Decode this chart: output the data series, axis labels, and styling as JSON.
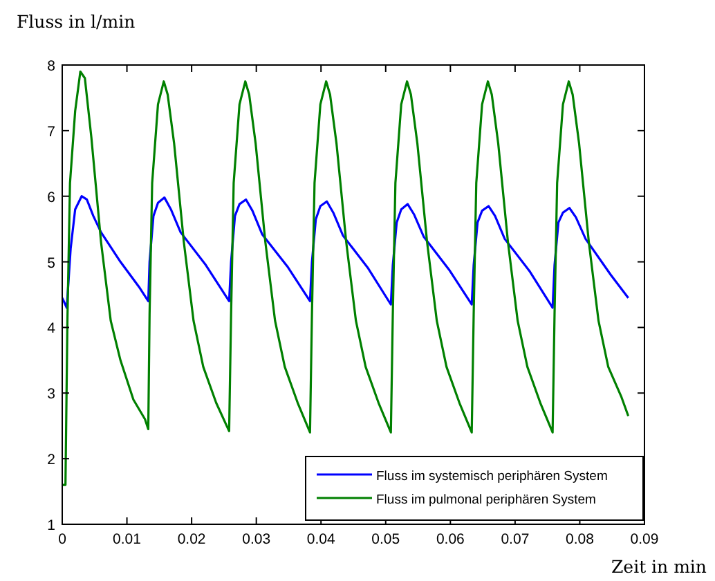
{
  "chart_data": {
    "type": "line",
    "ylabel": "Fluss in l/min",
    "xlabel": "Zeit in min",
    "xlim": [
      0,
      0.09
    ],
    "ylim": [
      1,
      8
    ],
    "xticks": [
      0,
      0.01,
      0.02,
      0.03,
      0.04,
      0.05,
      0.06,
      0.07,
      0.08,
      0.09
    ],
    "yticks": [
      1,
      2,
      3,
      4,
      5,
      6,
      7,
      8
    ],
    "grid": false,
    "legend": "bottom right",
    "marker": "none",
    "line_style": "solid",
    "series": [
      {
        "name": "Fluss im systemisch periphären System",
        "color": "#0000ff",
        "x": [
          0,
          0.0007,
          0.0013,
          0.002,
          0.003,
          0.0038,
          0.0048,
          0.006,
          0.009,
          0.012,
          0.0133,
          0.0135,
          0.0141,
          0.0148,
          0.0158,
          0.0168,
          0.0183,
          0.0222,
          0.0258,
          0.0261,
          0.0267,
          0.0274,
          0.0284,
          0.0294,
          0.0309,
          0.0348,
          0.0383,
          0.0386,
          0.0392,
          0.0399,
          0.0409,
          0.0419,
          0.0434,
          0.0473,
          0.0508,
          0.0511,
          0.0517,
          0.0524,
          0.0534,
          0.0544,
          0.0559,
          0.0598,
          0.0633,
          0.0636,
          0.0642,
          0.0649,
          0.0659,
          0.0669,
          0.0684,
          0.0723,
          0.0758,
          0.0761,
          0.0767,
          0.0774,
          0.0784,
          0.0794,
          0.0809,
          0.0848,
          0.0875
        ],
        "values": [
          4.45,
          4.3,
          5.2,
          5.8,
          6.0,
          5.95,
          5.7,
          5.45,
          5.0,
          4.6,
          4.4,
          5.0,
          5.7,
          5.9,
          5.98,
          5.8,
          5.45,
          4.95,
          4.4,
          5.0,
          5.7,
          5.88,
          5.95,
          5.78,
          5.42,
          4.93,
          4.4,
          5.0,
          5.65,
          5.85,
          5.92,
          5.75,
          5.4,
          4.9,
          4.35,
          4.95,
          5.6,
          5.8,
          5.88,
          5.72,
          5.38,
          4.88,
          4.35,
          4.95,
          5.6,
          5.78,
          5.85,
          5.7,
          5.35,
          4.85,
          4.3,
          4.95,
          5.6,
          5.75,
          5.82,
          5.68,
          5.35,
          4.8,
          4.45
        ]
      },
      {
        "name": "Fluss im pulmonal periphären System",
        "color": "#008000",
        "x": [
          0,
          0.0005,
          0.0008,
          0.0012,
          0.002,
          0.0028,
          0.0035,
          0.0045,
          0.006,
          0.0075,
          0.009,
          0.011,
          0.0128,
          0.0133,
          0.0135,
          0.0139,
          0.0148,
          0.0157,
          0.0163,
          0.0173,
          0.0188,
          0.0203,
          0.0218,
          0.0238,
          0.0258,
          0.0261,
          0.0265,
          0.0274,
          0.0283,
          0.0289,
          0.0299,
          0.0314,
          0.0329,
          0.0344,
          0.0364,
          0.0383,
          0.0386,
          0.039,
          0.0399,
          0.0408,
          0.0414,
          0.0424,
          0.0439,
          0.0454,
          0.0469,
          0.0489,
          0.0508,
          0.0511,
          0.0515,
          0.0524,
          0.0533,
          0.0539,
          0.0549,
          0.0564,
          0.0579,
          0.0594,
          0.0614,
          0.0633,
          0.0636,
          0.064,
          0.0649,
          0.0658,
          0.0664,
          0.0674,
          0.0689,
          0.0704,
          0.0719,
          0.0739,
          0.0758,
          0.0761,
          0.0765,
          0.0774,
          0.0783,
          0.0789,
          0.0799,
          0.0814,
          0.0829,
          0.0844,
          0.0864,
          0.0875
        ],
        "values": [
          1.6,
          1.6,
          4.1,
          6.2,
          7.3,
          7.9,
          7.8,
          6.9,
          5.3,
          4.1,
          3.5,
          2.9,
          2.6,
          2.45,
          4.2,
          6.2,
          7.4,
          7.75,
          7.55,
          6.8,
          5.3,
          4.1,
          3.4,
          2.85,
          2.42,
          4.2,
          6.2,
          7.4,
          7.75,
          7.55,
          6.8,
          5.3,
          4.1,
          3.4,
          2.85,
          2.4,
          4.2,
          6.2,
          7.4,
          7.75,
          7.55,
          6.8,
          5.3,
          4.1,
          3.4,
          2.85,
          2.4,
          4.2,
          6.2,
          7.4,
          7.75,
          7.55,
          6.8,
          5.3,
          4.1,
          3.4,
          2.85,
          2.4,
          4.2,
          6.2,
          7.4,
          7.75,
          7.55,
          6.8,
          5.3,
          4.1,
          3.4,
          2.85,
          2.4,
          4.2,
          6.2,
          7.4,
          7.75,
          7.55,
          6.8,
          5.3,
          4.1,
          3.4,
          2.95,
          2.65
        ]
      }
    ]
  }
}
